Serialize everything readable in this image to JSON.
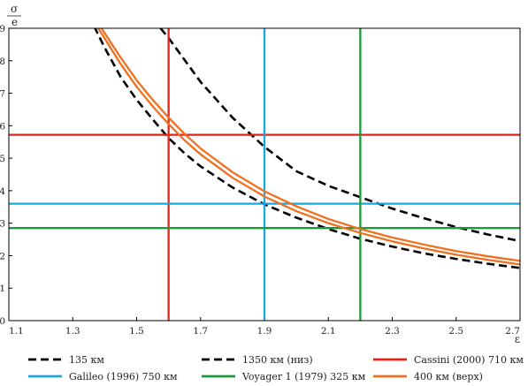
{
  "chart_data": {
    "type": "line",
    "ylabel": {
      "numerator": "σ",
      "denominator": "e"
    },
    "xlabel": "ε",
    "xlim": [
      1.1,
      2.7
    ],
    "ylim": [
      0,
      9
    ],
    "x_ticks": [
      "1.1",
      "1.3",
      "1.5",
      "1.7",
      "1.9",
      "2.1",
      "2.3",
      "2.5",
      "2.7"
    ],
    "y_ticks": [
      "0",
      "1",
      "2",
      "3",
      "4",
      "5",
      "6",
      "7",
      "8",
      "9"
    ],
    "grid": false,
    "legend_position": "bottom",
    "series": [
      {
        "name": "135 км",
        "color": "#000000",
        "style": "dashed",
        "x": [
          1.35,
          1.4,
          1.45,
          1.5,
          1.55,
          1.6,
          1.65,
          1.7,
          1.8,
          1.9,
          2.0,
          2.1,
          2.2,
          2.3,
          2.4,
          2.5,
          2.6,
          2.7
        ],
        "y": [
          9.4,
          8.4,
          7.5,
          6.8,
          6.2,
          5.62,
          5.15,
          4.75,
          4.1,
          3.58,
          3.17,
          2.82,
          2.52,
          2.28,
          2.07,
          1.9,
          1.75,
          1.62
        ]
      },
      {
        "name": "1350 км (низ)",
        "color": "#000000",
        "style": "dashed",
        "x": [
          1.55,
          1.6,
          1.7,
          1.8,
          1.9,
          2.0,
          2.1,
          2.2,
          2.3,
          2.4,
          2.5,
          2.6,
          2.7
        ],
        "y": [
          9.3,
          8.7,
          7.35,
          6.25,
          5.35,
          4.6,
          4.15,
          3.8,
          3.45,
          3.15,
          2.88,
          2.65,
          2.45
        ]
      },
      {
        "name": "Cassini (2000) 710 км",
        "color": "#e2231a",
        "style": "solid",
        "x": [
          1.1,
          2.7
        ],
        "y": [
          5.72,
          5.72
        ]
      },
      {
        "name": "Cassini (2000) 710 км",
        "color": "#e2231a",
        "style": "solid",
        "x": [
          1.6,
          1.6
        ],
        "y": [
          0,
          9
        ]
      },
      {
        "name": "Galileo (1996) 750 км",
        "color": "#1aa7e0",
        "style": "solid",
        "x": [
          1.1,
          2.7
        ],
        "y": [
          3.6,
          3.6
        ]
      },
      {
        "name": "Galileo (1996) 750 км",
        "color": "#1aa7e0",
        "style": "solid",
        "x": [
          1.9,
          1.9
        ],
        "y": [
          0,
          9
        ]
      },
      {
        "name": "Voyager 1 (1979) 325 км",
        "color": "#1a9a3c",
        "style": "solid",
        "x": [
          1.1,
          2.7
        ],
        "y": [
          2.85,
          2.85
        ]
      },
      {
        "name": "Voyager 1 (1979) 325 км",
        "color": "#1a9a3c",
        "style": "solid",
        "x": [
          2.2,
          2.2
        ],
        "y": [
          0,
          9
        ]
      },
      {
        "name": "400 км (верх)",
        "color": "#f07020",
        "style": "solid",
        "x": [
          1.38,
          1.45,
          1.5,
          1.55,
          1.6,
          1.65,
          1.7,
          1.8,
          1.9,
          2.0,
          2.1,
          2.2,
          2.3,
          2.4,
          2.5,
          2.6,
          2.7
        ],
        "y": [
          9.0,
          7.9,
          7.2,
          6.6,
          6.05,
          5.55,
          5.12,
          4.4,
          3.82,
          3.37,
          3.0,
          2.7,
          2.44,
          2.22,
          2.03,
          1.87,
          1.73
        ]
      },
      {
        "name": "400 км (верх)",
        "color": "#f07020",
        "style": "solid",
        "x": [
          1.39,
          1.45,
          1.5,
          1.55,
          1.6,
          1.65,
          1.7,
          1.8,
          1.9,
          2.0,
          2.1,
          2.2,
          2.3,
          2.4,
          2.5,
          2.6,
          2.7
        ],
        "y": [
          9.0,
          8.1,
          7.4,
          6.8,
          6.25,
          5.75,
          5.3,
          4.57,
          3.98,
          3.52,
          3.13,
          2.82,
          2.56,
          2.34,
          2.14,
          1.98,
          1.84
        ]
      }
    ],
    "legend": [
      {
        "label": "135 км",
        "color": "#000000",
        "style": "dashed"
      },
      {
        "label": "1350 км (низ)",
        "color": "#000000",
        "style": "dashed"
      },
      {
        "label": "Cassini (2000) 710 км",
        "color": "#e2231a",
        "style": "solid"
      },
      {
        "label": "Galileo (1996) 750 км",
        "color": "#1aa7e0",
        "style": "solid"
      },
      {
        "label": "Voyager 1 (1979) 325 км",
        "color": "#1a9a3c",
        "style": "solid"
      },
      {
        "label": "400 км (верх)",
        "color": "#f07020",
        "style": "solid"
      }
    ]
  }
}
